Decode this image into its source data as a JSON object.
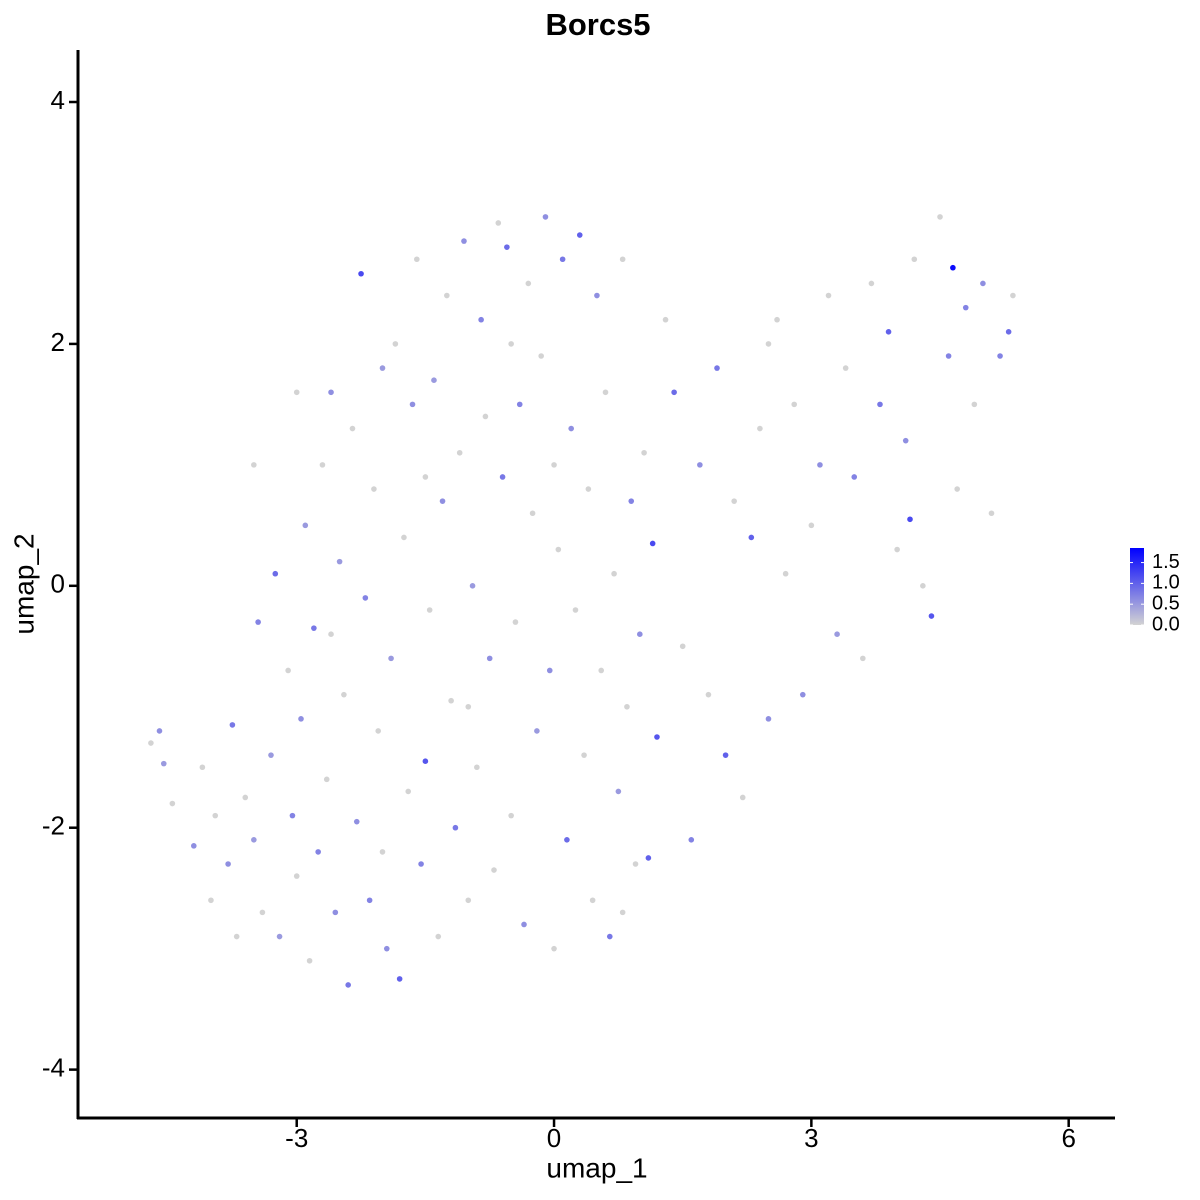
{
  "chart_data": {
    "type": "scatter",
    "title": "Borcs5",
    "x_label": "umap_1",
    "y_label": "umap_2",
    "xlim": [
      -5.55,
      6.54
    ],
    "ylim": [
      -4.4,
      4.43
    ],
    "xticks": [
      -3,
      0,
      3,
      6
    ],
    "yticks": [
      -4,
      -2,
      0,
      2,
      4
    ],
    "color_low": "#d3d3d3",
    "color_high": "#0000ff",
    "colorlim": [
      0,
      1.85
    ],
    "colorticks": [
      {
        "value": 0,
        "label": "0.0"
      },
      {
        "value": 0.5,
        "label": "0.5"
      },
      {
        "value": 1,
        "label": "1.0"
      },
      {
        "value": 1.5,
        "label": "1.5"
      }
    ],
    "x": [
      -4.7,
      -4.6,
      -4.55,
      -4.45,
      -4.2,
      -4.1,
      -4.0,
      -3.95,
      -3.8,
      -3.75,
      -3.7,
      -3.6,
      -3.5,
      -3.45,
      -3.4,
      -3.3,
      -3.25,
      -3.2,
      -3.1,
      -3.05,
      -3.0,
      -2.95,
      -2.9,
      -2.85,
      -2.8,
      -2.75,
      -2.7,
      -2.65,
      -2.6,
      -2.55,
      -2.5,
      -2.45,
      -2.4,
      -2.35,
      -2.3,
      -2.25,
      -2.2,
      -2.15,
      -2.1,
      -2.05,
      -2.0,
      -1.95,
      -1.9,
      -1.85,
      -1.8,
      -1.75,
      -1.7,
      -1.65,
      -1.6,
      -1.55,
      -1.5,
      -1.45,
      -1.4,
      -1.35,
      -1.3,
      -1.25,
      -1.2,
      -1.15,
      -1.1,
      -1.05,
      -1.0,
      -0.95,
      -0.9,
      -0.85,
      -0.8,
      -0.75,
      -0.7,
      -0.65,
      -0.6,
      -0.55,
      -0.5,
      -0.45,
      -0.4,
      -0.35,
      -0.3,
      -0.25,
      -0.2,
      -0.15,
      -0.1,
      -0.05,
      0.0,
      0.05,
      0.1,
      0.15,
      0.2,
      0.25,
      0.3,
      0.35,
      0.4,
      0.45,
      0.5,
      0.55,
      0.6,
      0.65,
      0.7,
      0.75,
      0.8,
      0.85,
      0.9,
      0.95,
      1.0,
      1.05,
      1.1,
      1.15,
      1.2,
      1.3,
      1.4,
      1.5,
      1.6,
      1.7,
      1.8,
      1.9,
      2.0,
      2.1,
      2.2,
      2.3,
      2.4,
      2.5,
      2.6,
      2.7,
      2.8,
      2.9,
      3.0,
      3.1,
      3.2,
      3.3,
      3.4,
      3.5,
      3.6,
      3.7,
      3.8,
      3.9,
      4.0,
      4.1,
      4.15,
      4.2,
      4.3,
      4.4,
      4.5,
      4.6,
      4.65,
      4.7,
      4.8,
      4.9,
      5.0,
      5.1,
      5.2,
      5.3,
      5.35,
      -3.5,
      -3.0,
      -2.0,
      -1.0,
      0.0,
      0.8,
      -2.6,
      -1.5,
      -0.5,
      2.5
    ],
    "y": [
      -1.3,
      -1.2,
      -1.47,
      -1.8,
      -2.15,
      -1.5,
      -2.6,
      -1.9,
      -2.3,
      -1.15,
      -2.9,
      -1.75,
      -2.1,
      -0.3,
      -2.7,
      -1.4,
      0.1,
      -2.9,
      -0.7,
      -1.9,
      -2.4,
      -1.1,
      0.5,
      -3.1,
      -0.35,
      -2.2,
      1.0,
      -1.6,
      1.6,
      -2.7,
      0.2,
      -0.9,
      -3.3,
      1.3,
      -1.95,
      2.58,
      -0.1,
      -2.6,
      0.8,
      -1.2,
      1.8,
      -3.0,
      -0.6,
      2.0,
      -3.25,
      0.4,
      -1.7,
      1.5,
      2.7,
      -2.3,
      -1.45,
      -0.2,
      1.7,
      -2.9,
      0.7,
      2.4,
      -0.95,
      -2.0,
      1.1,
      2.85,
      -2.6,
      0.0,
      -1.5,
      2.2,
      1.4,
      -0.6,
      -2.35,
      3.0,
      0.9,
      2.8,
      -1.9,
      -0.3,
      1.5,
      -2.8,
      2.5,
      0.6,
      -1.2,
      1.9,
      3.05,
      -0.7,
      -3.0,
      0.3,
      2.7,
      -2.1,
      1.3,
      -0.2,
      2.9,
      -1.4,
      0.8,
      -2.6,
      2.4,
      -0.7,
      1.6,
      -2.9,
      0.1,
      -1.7,
      2.7,
      -1.0,
      0.7,
      -2.3,
      -0.4,
      1.1,
      -2.25,
      0.35,
      -1.25,
      2.2,
      1.6,
      -0.5,
      -2.1,
      1.0,
      -0.9,
      1.8,
      -1.4,
      0.7,
      -1.75,
      0.4,
      1.3,
      -1.1,
      2.2,
      0.1,
      1.5,
      -0.9,
      0.5,
      1.0,
      2.4,
      -0.4,
      1.8,
      0.9,
      -0.6,
      2.5,
      1.5,
      2.1,
      0.3,
      1.2,
      0.55,
      2.7,
      0.0,
      -0.25,
      3.05,
      1.9,
      2.63,
      0.8,
      2.3,
      1.5,
      2.5,
      0.6,
      1.9,
      2.1,
      2.4,
      1.0,
      1.6,
      -2.2,
      -1.0,
      1.0,
      -2.7,
      -0.4,
      0.9,
      2.0,
      2.0
    ],
    "values": [
      0,
      0.6,
      0.5,
      0,
      0.6,
      0,
      0,
      0,
      0.6,
      0.8,
      0,
      0,
      0.5,
      0.7,
      0,
      0.5,
      0.9,
      0.5,
      0,
      0.7,
      0,
      0.6,
      0.5,
      0,
      0.8,
      0.7,
      0,
      0,
      0.6,
      0.6,
      0.5,
      0,
      0.8,
      0,
      0.6,
      1.2,
      0.7,
      0.7,
      0,
      0,
      0.5,
      0.6,
      0.5,
      0,
      1.0,
      0,
      0,
      0.6,
      0,
      0.7,
      1.1,
      0,
      0.5,
      0,
      0.6,
      0,
      0,
      0.8,
      0,
      0.6,
      0,
      0.5,
      0,
      0.7,
      0,
      0.6,
      0,
      0,
      0.8,
      0.9,
      0,
      0,
      0.7,
      0.6,
      0,
      0,
      0.5,
      0,
      0.6,
      0.6,
      0,
      0,
      0.8,
      0.9,
      0.6,
      0,
      1.0,
      0,
      0,
      0,
      0.6,
      0,
      0,
      0.8,
      0,
      0.5,
      0,
      0,
      0.7,
      0,
      0.6,
      0,
      1.0,
      1.2,
      1.1,
      0,
      0.9,
      0,
      0.7,
      0.6,
      0,
      0.8,
      1.0,
      0,
      0,
      1.0,
      0,
      0.6,
      0,
      0,
      0,
      0.6,
      0,
      0.6,
      0,
      0.5,
      0,
      0.7,
      0,
      0,
      0.8,
      1.0,
      0,
      0.6,
      1.2,
      0,
      0,
      1.1,
      0,
      0.7,
      1.75,
      0,
      0.7,
      0,
      0.6,
      0,
      0.7,
      0.9,
      0,
      0,
      0,
      0,
      0,
      0,
      0,
      0,
      0,
      0,
      0
    ]
  }
}
